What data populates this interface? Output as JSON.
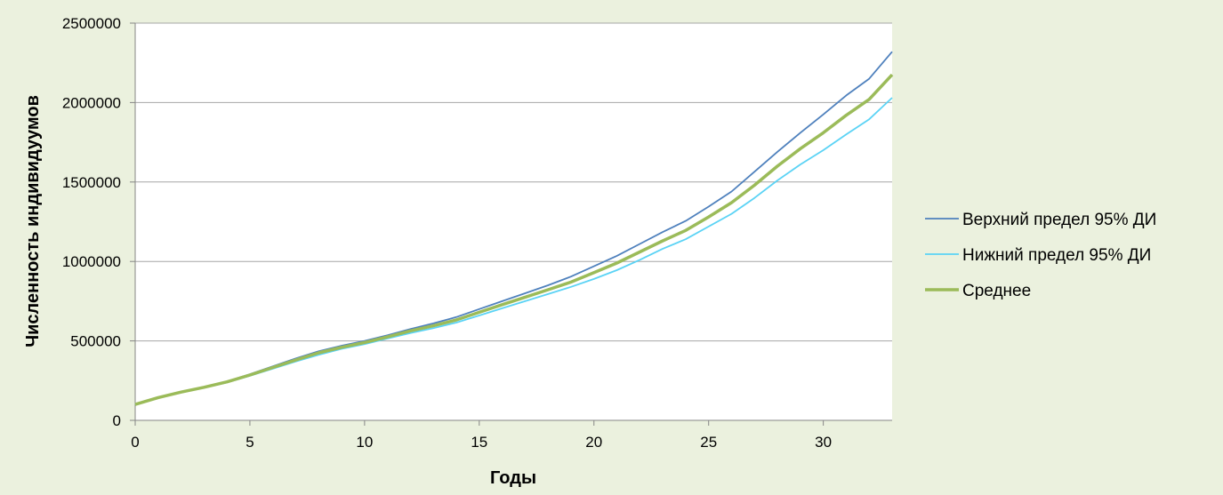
{
  "chart_data": {
    "type": "line",
    "title": "",
    "xlabel": "Годы",
    "ylabel": "Численность индивидуумов",
    "xlim": [
      0,
      33
    ],
    "ylim": [
      0,
      2500000
    ],
    "x_ticks": [
      0,
      5,
      10,
      15,
      20,
      25,
      30
    ],
    "y_ticks": [
      0,
      500000,
      1000000,
      1500000,
      2000000,
      2500000
    ],
    "grid": "horizontal",
    "legend_position": "right",
    "x": [
      0,
      1,
      2,
      3,
      4,
      5,
      6,
      7,
      8,
      9,
      10,
      11,
      12,
      13,
      14,
      15,
      16,
      17,
      18,
      19,
      20,
      21,
      22,
      23,
      24,
      25,
      26,
      27,
      28,
      29,
      30,
      31,
      32,
      33
    ],
    "series": [
      {
        "name": "Верхний предел 95% ДИ",
        "color": "#4f81bd",
        "values": [
          100000,
          145000,
          180000,
          210000,
          245000,
          290000,
          340000,
          390000,
          435000,
          470000,
          500000,
          535000,
          575000,
          610000,
          650000,
          700000,
          750000,
          800000,
          850000,
          905000,
          970000,
          1035000,
          1110000,
          1185000,
          1255000,
          1345000,
          1440000,
          1565000,
          1690000,
          1810000,
          1925000,
          2045000,
          2150000,
          2320000
        ]
      },
      {
        "name": "Нижний предел 95% ДИ",
        "color": "#5bd3f5",
        "values": [
          100000,
          142000,
          175000,
          205000,
          238000,
          280000,
          325000,
          370000,
          413000,
          450000,
          480000,
          515000,
          550000,
          580000,
          615000,
          660000,
          705000,
          750000,
          795000,
          840000,
          890000,
          945000,
          1010000,
          1080000,
          1140000,
          1220000,
          1300000,
          1400000,
          1510000,
          1610000,
          1700000,
          1800000,
          1895000,
          2030000
        ]
      },
      {
        "name": "Среднее",
        "color": "#9bbb59",
        "values": [
          100000,
          143000,
          178000,
          208000,
          242000,
          285000,
          333000,
          380000,
          425000,
          460000,
          490000,
          525000,
          563000,
          595000,
          632000,
          680000,
          728000,
          775000,
          822000,
          870000,
          930000,
          990000,
          1060000,
          1130000,
          1195000,
          1280000,
          1370000,
          1480000,
          1600000,
          1710000,
          1810000,
          1920000,
          2020000,
          2175000
        ]
      }
    ]
  }
}
